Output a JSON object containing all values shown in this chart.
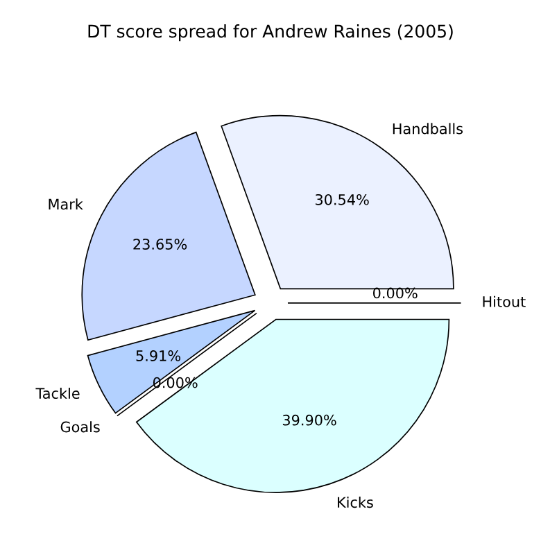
{
  "chart_data": {
    "type": "pie",
    "title": "DT score spread for Andrew Raines (2005)",
    "categories": [
      "Hitout",
      "Handballs",
      "Mark",
      "Tackle",
      "Goals",
      "Kicks"
    ],
    "values": [
      0.0,
      30.54,
      23.65,
      5.91,
      0.0,
      39.9
    ],
    "value_labels": [
      "0.00%",
      "30.54%",
      "23.65%",
      "5.91%",
      "0.00%",
      "39.90%"
    ],
    "colors": [
      "#ffffff",
      "#ebf1ff",
      "#c6d7ff",
      "#b3d1ff",
      "#ffffff",
      "#dbffff"
    ],
    "legend": false
  }
}
